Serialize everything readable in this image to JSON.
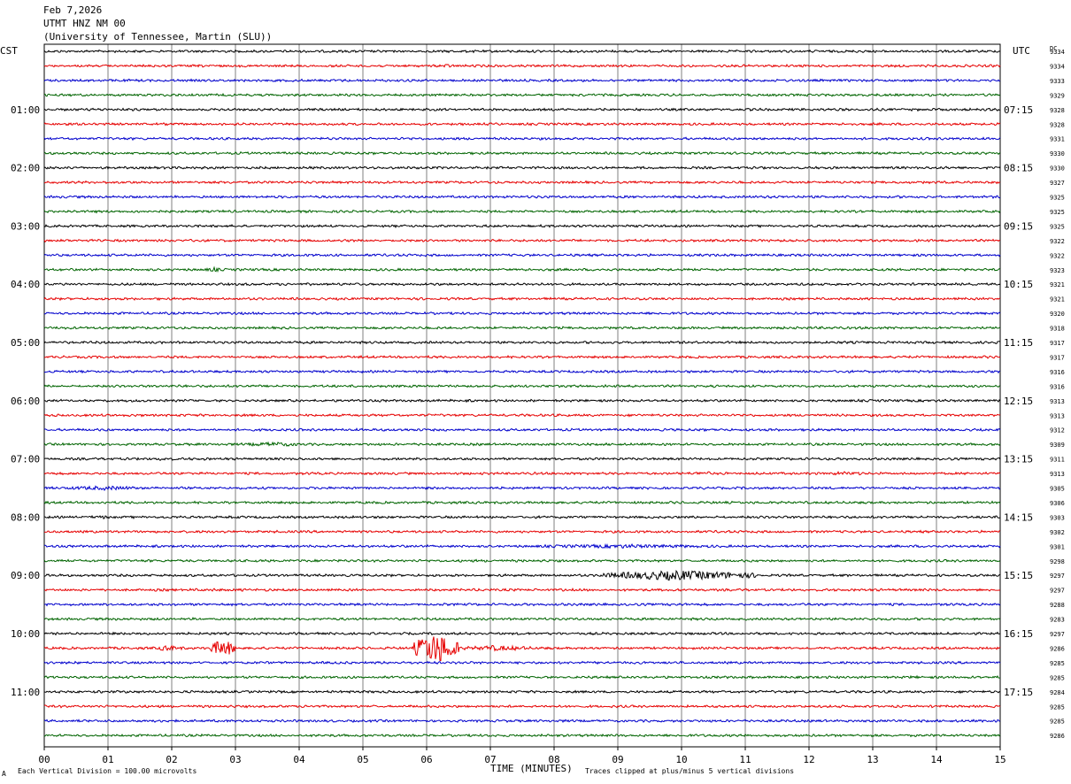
{
  "header": {
    "date": "Feb 7,2026",
    "station": "UTMT HNZ NM 00",
    "network": "(University of Tennessee, Martin (SLU))"
  },
  "left_axis_label": "CST",
  "right_axis_label": "UTC",
  "dc_label": "DC",
  "footer": {
    "scale_note": "Each Vertical Division =  100.00 microvolts",
    "xlabel": "TIME (MINUTES)",
    "clip_note": "Traces clipped at plus/minus 5 vertical divisions",
    "corner_mark": "A"
  },
  "colors": {
    "trace_cycle": [
      "#000000",
      "#e60000",
      "#0000cc",
      "#006400"
    ],
    "grid": "#000000",
    "background": "#ffffff"
  },
  "chart_data": {
    "type": "line",
    "title": "UTMT HNZ NM 00",
    "xlabel": "TIME (MINUTES)",
    "xlim": [
      0,
      15
    ],
    "x_ticks": [
      "00",
      "01",
      "02",
      "03",
      "04",
      "05",
      "06",
      "07",
      "08",
      "09",
      "10",
      "11",
      "12",
      "13",
      "14",
      "15"
    ],
    "trace_minutes": 15,
    "traces_per_hour": 4,
    "hour_labels_cst": [
      "01:00",
      "02:00",
      "03:00",
      "04:00",
      "05:00",
      "06:00",
      "07:00",
      "08:00",
      "09:00",
      "10:00",
      "11:00"
    ],
    "hour_labels_utc": [
      "07:15",
      "08:15",
      "09:15",
      "10:15",
      "11:15",
      "12:15",
      "13:15",
      "14:15",
      "15:15",
      "16:15",
      "17:15"
    ],
    "first_labeled_trace": 4,
    "dc_offsets": [
      9334,
      9334,
      9333,
      9329,
      9328,
      9328,
      9331,
      9330,
      9330,
      9327,
      9325,
      9325,
      9325,
      9322,
      9322,
      9323,
      9321,
      9321,
      9320,
      9318,
      9317,
      9317,
      9316,
      9316,
      9313,
      9313,
      9312,
      9309,
      9311,
      9313,
      9305,
      9306,
      9303,
      9302,
      9301,
      9298,
      9297,
      9297,
      9288,
      9283,
      9297,
      9286,
      9285,
      9285,
      9284,
      9285,
      9285,
      9286
    ],
    "events": [
      {
        "trace": 1,
        "start": 6.1,
        "end": 6.5,
        "amp": 1.8
      },
      {
        "trace": 15,
        "start": 2.5,
        "end": 2.8,
        "amp": 2.5
      },
      {
        "trace": 27,
        "start": 3.0,
        "end": 4.2,
        "amp": 2.4
      },
      {
        "trace": 28,
        "start": 1.5,
        "end": 2.2,
        "amp": 1.8
      },
      {
        "trace": 29,
        "start": 10.2,
        "end": 10.5,
        "amp": 2.6
      },
      {
        "trace": 29,
        "start": 12.2,
        "end": 13.0,
        "amp": 2.0
      },
      {
        "trace": 30,
        "start": 0.0,
        "end": 1.9,
        "amp": 2.2
      },
      {
        "trace": 32,
        "start": 0.6,
        "end": 1.1,
        "amp": 2.0
      },
      {
        "trace": 34,
        "start": 7.0,
        "end": 11.2,
        "amp": 2.0
      },
      {
        "trace": 36,
        "start": 8.7,
        "end": 11.2,
        "amp": 5.5
      },
      {
        "trace": 37,
        "start": 0.0,
        "end": 5.3,
        "amp": 1.4
      },
      {
        "trace": 41,
        "start": 1.7,
        "end": 2.2,
        "amp": 3.0
      },
      {
        "trace": 41,
        "start": 2.6,
        "end": 3.0,
        "amp": 10.0
      },
      {
        "trace": 41,
        "start": 5.8,
        "end": 6.5,
        "amp": 18.0
      },
      {
        "trace": 41,
        "start": 6.5,
        "end": 7.7,
        "amp": 3.0
      },
      {
        "trace": 43,
        "start": 13.3,
        "end": 13.9,
        "amp": 1.6
      }
    ]
  }
}
